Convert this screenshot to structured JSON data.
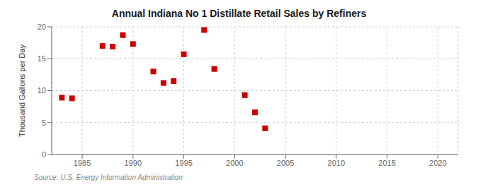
{
  "chart_data": {
    "type": "scatter",
    "title": "Annual Indiana No 1 Distillate Retail Sales by Refiners",
    "ylabel": "Thousand Gallons per Day",
    "annotations": [
      "Source: U.S. Energy Information Administration"
    ],
    "x": [
      1983,
      1984,
      1987,
      1988,
      1989,
      1990,
      1992,
      1993,
      1994,
      1995,
      1997,
      1998,
      2001,
      2002,
      2003
    ],
    "values": [
      8.9,
      8.8,
      17.0,
      16.9,
      18.7,
      17.3,
      13.0,
      11.2,
      11.5,
      15.7,
      19.5,
      13.4,
      9.3,
      6.6,
      4.1
    ],
    "color": "#cc0000",
    "marker": "square",
    "xlim": [
      1982,
      2022
    ],
    "ylim": [
      0,
      20
    ],
    "xticks": [
      1985,
      1990,
      1995,
      2000,
      2005,
      2010,
      2015,
      2020
    ],
    "yticks": [
      0,
      5,
      10,
      15,
      20
    ],
    "grid": true
  }
}
